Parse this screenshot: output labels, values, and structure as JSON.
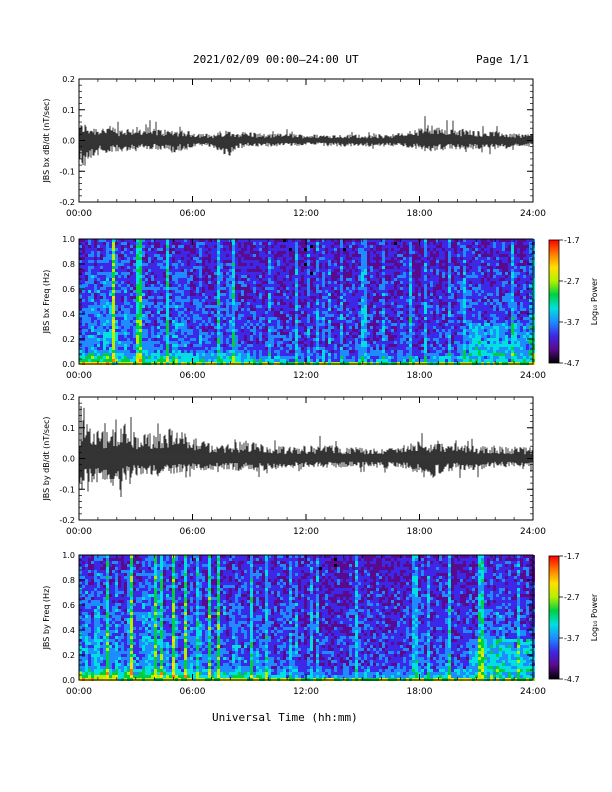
{
  "header": {
    "title": "2021/02/09  00:00—24:00 UT",
    "page": "Page 1/1"
  },
  "footer": {
    "xlabel": "Universal Time (hh:mm)"
  },
  "colorbar": {
    "label": "Log₁₀ Power",
    "ticks": [
      "-1.7",
      "-2.7",
      "-3.7",
      "-4.7"
    ],
    "range": [
      -4.7,
      -1.7
    ],
    "colors": [
      "#000000",
      "#5a0a8c",
      "#3c28e6",
      "#1e8cff",
      "#00e0e0",
      "#00d040",
      "#b4f000",
      "#ffe000",
      "#ff7800",
      "#ff0000"
    ]
  },
  "chart_data": [
    {
      "type": "line",
      "ylabel": "JBS bx dB/dt (nT/sec)",
      "xlim": [
        "00:00",
        "24:00"
      ],
      "ylim": [
        -0.2,
        0.2
      ],
      "xticks": [
        "00:00",
        "06:00",
        "12:00",
        "18:00",
        "24:00"
      ],
      "yticks": [
        "0.2",
        "0.1",
        "0.0",
        "-0.1",
        "-0.2"
      ],
      "series": [
        {
          "x_hours": [
            0,
            0.25,
            0.5,
            1,
            1.5,
            2,
            3,
            4,
            5,
            6,
            7,
            7.9,
            8.2,
            9,
            10,
            11,
            12,
            13,
            14,
            15,
            16,
            17,
            18,
            18.5,
            19,
            19.5,
            20,
            21,
            22,
            23,
            24
          ],
          "y_min": [
            -0.05,
            -0.1,
            -0.06,
            -0.05,
            -0.04,
            -0.04,
            -0.03,
            -0.03,
            -0.04,
            -0.025,
            -0.02,
            -0.06,
            -0.03,
            -0.02,
            -0.02,
            -0.02,
            -0.015,
            -0.02,
            -0.02,
            -0.02,
            -0.02,
            -0.02,
            -0.03,
            -0.04,
            -0.03,
            -0.03,
            -0.03,
            -0.03,
            -0.03,
            -0.02,
            -0.02
          ],
          "y_max": [
            0.05,
            0.06,
            0.05,
            0.045,
            0.05,
            0.04,
            0.045,
            0.04,
            0.035,
            0.03,
            0.02,
            0.035,
            0.03,
            0.03,
            0.02,
            0.025,
            0.02,
            0.02,
            0.02,
            0.02,
            0.02,
            0.025,
            0.04,
            0.06,
            0.045,
            0.05,
            0.04,
            0.035,
            0.03,
            0.025,
            0.02
          ]
        }
      ]
    },
    {
      "type": "heatmap",
      "ylabel": "JBS bx Freq (Hz)",
      "xlim": [
        "00:00",
        "24:00"
      ],
      "ylim": [
        0.0,
        1.0
      ],
      "xticks": [
        "00:00",
        "06:00",
        "12:00",
        "18:00",
        "24:00"
      ],
      "yticks": [
        "1.0",
        "0.8",
        "0.6",
        "0.4",
        "0.2",
        "0.0"
      ],
      "value_range": [
        -4.7,
        -1.7
      ],
      "activity_hours": [
        0,
        1,
        2,
        3,
        4,
        5,
        6,
        7,
        8,
        9,
        10,
        11,
        12,
        13,
        14,
        15,
        16,
        17,
        18,
        19,
        20,
        21,
        22,
        23,
        24
      ],
      "activity": [
        0.85,
        0.9,
        0.85,
        0.8,
        0.8,
        0.75,
        0.7,
        0.65,
        0.7,
        0.6,
        0.5,
        0.45,
        0.35,
        0.35,
        0.4,
        0.45,
        0.45,
        0.45,
        0.5,
        0.55,
        0.55,
        0.6,
        0.6,
        0.55,
        0.5
      ]
    },
    {
      "type": "line",
      "ylabel": "JBS by dB/dt (nT/sec)",
      "xlim": [
        "00:00",
        "24:00"
      ],
      "ylim": [
        -0.2,
        0.2
      ],
      "xticks": [
        "00:00",
        "06:00",
        "12:00",
        "18:00",
        "24:00"
      ],
      "yticks": [
        "0.2",
        "0.1",
        "0.0",
        "-0.1",
        "-0.2"
      ],
      "series": [
        {
          "x_hours": [
            0,
            0.25,
            0.5,
            1,
            1.5,
            2,
            2.5,
            3,
            4,
            5,
            6,
            7,
            8,
            9,
            10,
            11,
            12,
            13,
            14,
            15,
            16,
            17,
            18,
            18.5,
            19,
            20,
            21,
            22,
            23,
            24
          ],
          "y_min": [
            -0.08,
            -0.1,
            -0.09,
            -0.08,
            -0.07,
            -0.12,
            -0.07,
            -0.06,
            -0.06,
            -0.05,
            -0.04,
            -0.04,
            -0.04,
            -0.04,
            -0.04,
            -0.03,
            -0.03,
            -0.03,
            -0.03,
            -0.03,
            -0.03,
            -0.03,
            -0.05,
            -0.08,
            -0.05,
            -0.04,
            -0.04,
            -0.03,
            -0.03,
            -0.03
          ],
          "y_max": [
            0.09,
            0.18,
            0.1,
            0.1,
            0.09,
            0.1,
            0.12,
            0.08,
            0.09,
            0.1,
            0.07,
            0.05,
            0.05,
            0.06,
            0.04,
            0.04,
            0.04,
            0.05,
            0.04,
            0.04,
            0.03,
            0.04,
            0.06,
            0.05,
            0.05,
            0.05,
            0.04,
            0.04,
            0.04,
            0.04
          ]
        }
      ]
    },
    {
      "type": "heatmap",
      "ylabel": "JBS by Freq (Hz)",
      "xlim": [
        "00:00",
        "24:00"
      ],
      "ylim": [
        0.0,
        1.0
      ],
      "xticks": [
        "00:00",
        "06:00",
        "12:00",
        "18:00",
        "24:00"
      ],
      "yticks": [
        "1.0",
        "0.8",
        "0.6",
        "0.4",
        "0.2",
        "0.0"
      ],
      "value_range": [
        -4.7,
        -1.7
      ],
      "activity_hours": [
        0,
        1,
        2,
        3,
        4,
        5,
        6,
        7,
        8,
        9,
        10,
        11,
        12,
        13,
        14,
        15,
        16,
        17,
        18,
        19,
        20,
        21,
        22,
        23,
        24
      ],
      "activity": [
        0.95,
        1.0,
        0.95,
        0.9,
        0.9,
        0.85,
        0.8,
        0.75,
        0.75,
        0.7,
        0.6,
        0.5,
        0.4,
        0.4,
        0.45,
        0.5,
        0.5,
        0.5,
        0.55,
        0.6,
        0.6,
        0.7,
        0.75,
        0.7,
        0.65
      ]
    }
  ]
}
